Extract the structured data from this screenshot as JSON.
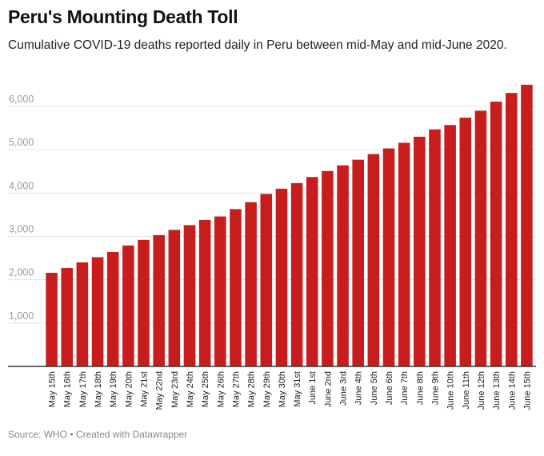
{
  "header": {
    "title": "Peru's Mounting Death Toll",
    "subtitle": "Cumulative COVID-19 deaths reported daily in Peru between mid-May and mid-June 2020."
  },
  "footer": {
    "source": "Source: WHO",
    "separator": "•",
    "credit": "Created with Datawrapper"
  },
  "chart_data": {
    "type": "bar",
    "title": "",
    "xlabel": "",
    "ylabel": "",
    "ylim": [
      0,
      6500
    ],
    "yticks": [
      1000,
      2000,
      3000,
      4000,
      5000,
      6000
    ],
    "ytick_labels": [
      "1,000",
      "2,000",
      "3,000",
      "4,000",
      "5,000",
      "6,000"
    ],
    "grid": true,
    "bar_color": "#c71e1d",
    "categories": [
      "May 15th",
      "May 16th",
      "May 17th",
      "May 18th",
      "May 19th",
      "May 20th",
      "May 21st",
      "May 22nd",
      "May 23rd",
      "May 24th",
      "May 25th",
      "May 26th",
      "May 27th",
      "May 28th",
      "May 29th",
      "May 30th",
      "May 31st",
      "June 1st",
      "June 2nd",
      "June 3rd",
      "June 4th",
      "June 5th",
      "June 6th",
      "June 7th",
      "June 8th",
      "June 9th",
      "June 10th",
      "June 11th",
      "June 12th",
      "June 13th",
      "June 14th",
      "June 15th"
    ],
    "values": [
      2160,
      2270,
      2400,
      2520,
      2640,
      2790,
      2920,
      3030,
      3150,
      3260,
      3380,
      3460,
      3630,
      3790,
      3980,
      4100,
      4230,
      4370,
      4510,
      4640,
      4770,
      4900,
      5030,
      5160,
      5300,
      5470,
      5570,
      5740,
      5900,
      6110,
      6310,
      6500
    ]
  }
}
